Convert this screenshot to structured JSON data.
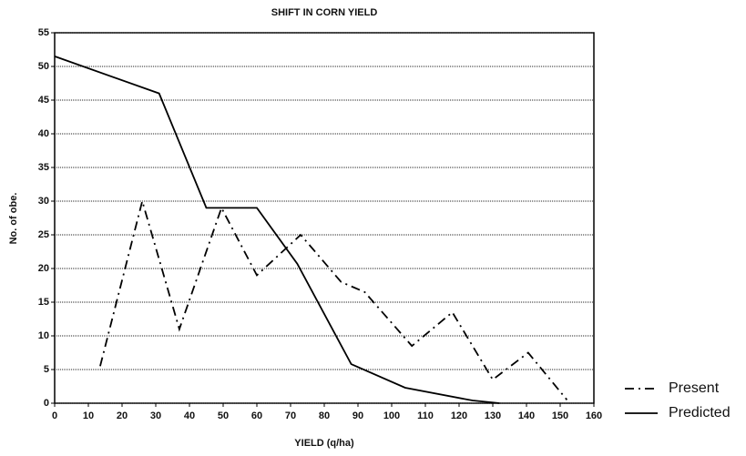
{
  "chart_data": {
    "type": "line",
    "title": "SHIFT IN CORN YIELD",
    "x_label": "YIELD (q/ha)",
    "y_label": "No. of obe.",
    "xlim": [
      0,
      160
    ],
    "ylim": [
      0,
      55
    ],
    "xticks": [
      0,
      10,
      20,
      30,
      40,
      50,
      60,
      70,
      80,
      90,
      100,
      110,
      120,
      130,
      140,
      150,
      160
    ],
    "yticks": [
      0,
      5,
      10,
      15,
      20,
      25,
      30,
      35,
      40,
      45,
      50,
      55
    ],
    "grid": true,
    "legend": "right",
    "series": [
      {
        "name": "Present",
        "color": "#000000",
        "style": "dashdot",
        "x": [
          13.5,
          26,
          37,
          49.5,
          60,
          73,
          85,
          92,
          106,
          118,
          130,
          140.5,
          152
        ],
        "values": [
          5.5,
          30,
          11,
          29,
          19,
          25,
          18,
          16.5,
          8.5,
          13.5,
          3.5,
          7.5,
          0.5
        ]
      },
      {
        "name": "Predicted",
        "color": "#000000",
        "style": "solid",
        "x": [
          0,
          31,
          45,
          60,
          72,
          88,
          104,
          124,
          132
        ],
        "values": [
          51.5,
          46,
          29,
          29,
          20.7,
          5.8,
          2.3,
          0.4,
          0
        ]
      }
    ]
  }
}
